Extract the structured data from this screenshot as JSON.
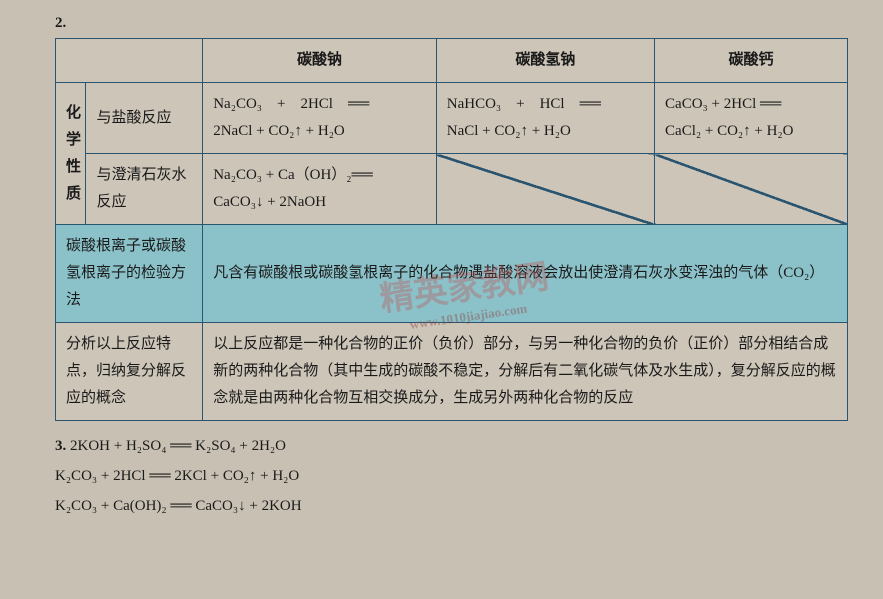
{
  "q2_label": "2.",
  "table": {
    "headers": {
      "c1": "碳酸钠",
      "c2": "碳酸氢钠",
      "c3": "碳酸钙"
    },
    "vlabel": "化学性质",
    "row_hcl": {
      "label": "与盐酸反应",
      "c1": "Na₂CO₃　+　2HCl　══\n2NaCl + CO₂↑ + H₂O",
      "c2": "NaHCO₃　+　HCl　══\nNaCl + CO₂↑ + H₂O",
      "c3": "CaCO₃ + 2HCl ══\nCaCl₂ + CO₂↑ + H₂O"
    },
    "row_caoh": {
      "label": "与澄清石灰水反应",
      "c1": "Na₂CO₃ + Ca（OH）₂══\nCaCO₃↓ + 2NaOH"
    },
    "row_test": {
      "label": "碳酸根离子或碳酸氢根离子的检验方法",
      "content": "凡含有碳酸根或碳酸氢根离子的化合物遇盐酸溶液会放出使澄清石灰水变浑浊的气体（CO₂）"
    },
    "row_summary": {
      "label": "分析以上反应特点，归纳复分解反应的概念",
      "content": "以上反应都是一种化合物的正价（负价）部分，与另一种化合物的负价（正价）部分相结合成新的两种化合物（其中生成的碳酸不稳定，分解后有二氧化碳气体及水生成），复分解反应的概念就是由两种化合物互相交换成分，生成另外两种化合物的反应"
    }
  },
  "q3": {
    "label": "3.",
    "line1": "2KOH + H₂SO₄ ══ K₂SO₄ + 2H₂O",
    "line2": "K₂CO₃ + 2HCl ══ 2KCl + CO₂↑ + H₂O",
    "line3": "K₂CO₃ + Ca(OH)₂ ══ CaCO₃↓ + 2KOH"
  },
  "watermark": {
    "main": "精英家教网",
    "sub": "www.1010jiajiao.com"
  }
}
